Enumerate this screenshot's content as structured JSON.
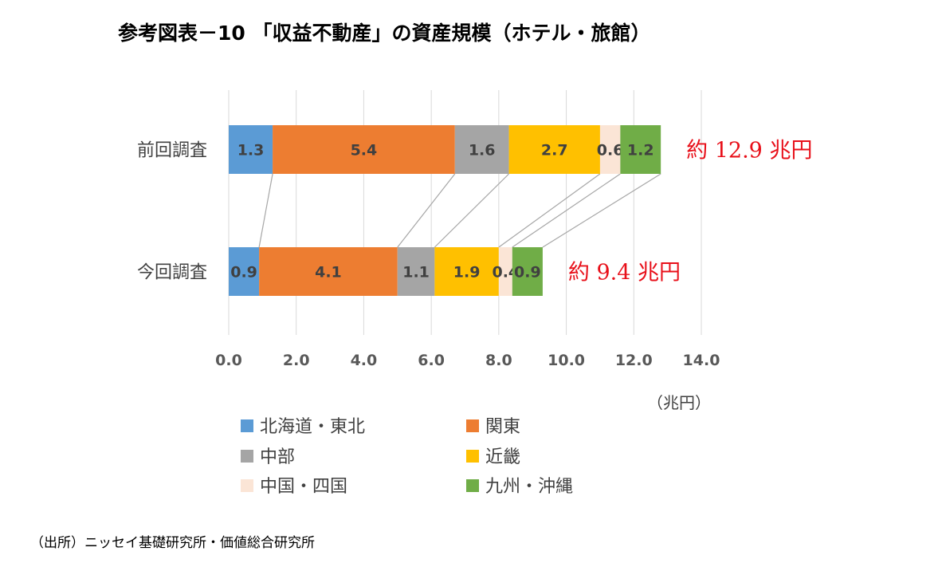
{
  "title": "参考図表－10 「収益不動産」の資産規模（ホテル・旅館）",
  "source": "（出所）ニッセイ基礎研究所・価値総合研究所",
  "chart_data": {
    "type": "bar",
    "orientation": "horizontal",
    "stacked": true,
    "categories": [
      "前回調査",
      "今回調査"
    ],
    "series": [
      {
        "name": "北海道・東北",
        "color": "#5b9bd5",
        "values": [
          1.3,
          0.9
        ]
      },
      {
        "name": "関東",
        "color": "#ed7d31",
        "values": [
          5.4,
          4.1
        ]
      },
      {
        "name": "中部",
        "color": "#a5a5a5",
        "values": [
          1.6,
          1.1
        ]
      },
      {
        "name": "近畿",
        "color": "#ffc000",
        "values": [
          2.7,
          1.9
        ]
      },
      {
        "name": "中国・四国",
        "color": "#fbe5d6",
        "values": [
          0.6,
          0.4
        ]
      },
      {
        "name": "九州・沖縄",
        "color": "#70ad47",
        "values": [
          1.2,
          0.9
        ]
      }
    ],
    "value_labels": [
      [
        "1.3",
        "5.4",
        "1.6",
        "2.7",
        "0.6",
        "1.2"
      ],
      [
        "0.9",
        "4.1",
        "1.1",
        "1.9",
        "0.4",
        "0.9"
      ]
    ],
    "totals": [
      "約 12.9 兆円",
      "約 9.4 兆円"
    ],
    "xlim": [
      0,
      14
    ],
    "xticks": [
      "0.0",
      "2.0",
      "4.0",
      "6.0",
      "8.0",
      "10.0",
      "12.0",
      "14.0"
    ],
    "xlabel": "（兆円）",
    "grid": true,
    "series_lines": true,
    "legend_position": "bottom"
  }
}
